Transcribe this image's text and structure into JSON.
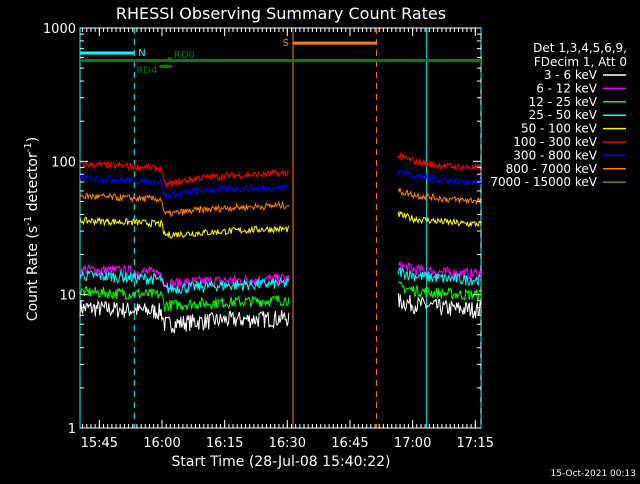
{
  "chart_data": {
    "type": "line",
    "title": "RHESSI Observing Summary Count Rates",
    "xlabel": "Start Time (28-Jul-08 15:40:22)",
    "ylabel_base": "Count Rate (s",
    "ylabel_sup1": "-1",
    "ylabel_mid": " detector",
    "ylabel_sup2": "-1",
    "ylabel_end": ")",
    "y_scale": "log",
    "ylim": [
      1,
      1000
    ],
    "x_start_minutes": 0,
    "x_end_minutes": 96,
    "x_ticks": [
      {
        "minute": 4.63,
        "label": "15:45"
      },
      {
        "minute": 19.63,
        "label": "16:00"
      },
      {
        "minute": 34.63,
        "label": "16:15"
      },
      {
        "minute": 49.63,
        "label": "16:30"
      },
      {
        "minute": 64.63,
        "label": "16:45"
      },
      {
        "minute": 79.63,
        "label": "17:00"
      },
      {
        "minute": 94.63,
        "label": "17:15"
      }
    ],
    "y_ticks": [
      {
        "value": 1,
        "label": "1"
      },
      {
        "value": 10,
        "label": "10"
      },
      {
        "value": 100,
        "label": "100"
      },
      {
        "value": 1000,
        "label": "1000"
      }
    ],
    "legend_header": [
      "Det 1,3,4,5,6,9,",
      "FDecim 1, Att 0"
    ],
    "legend_placement": "right",
    "series": [
      {
        "name": "3 - 6 keV",
        "color": "#ffffff",
        "segments": [
          {
            "x": [
              0,
              12,
              19.5,
              20.2,
              28,
              36,
              44,
              50
            ],
            "y": [
              8.0,
              7.7,
              7.5,
              6.0,
              6.3,
              6.5,
              6.6,
              6.7
            ]
          },
          {
            "x": [
              76.2,
              80,
              84,
              88,
              92,
              96
            ],
            "y": [
              9.0,
              8.5,
              8.2,
              7.9,
              7.8,
              7.8
            ]
          }
        ]
      },
      {
        "name": "6 - 12 keV",
        "color": "#ff00ff",
        "segments": [
          {
            "x": [
              0,
              12,
              19.5,
              20.2,
              28,
              36,
              44,
              50
            ],
            "y": [
              15.5,
              15.0,
              14.5,
              12.0,
              12.5,
              12.8,
              13.0,
              13.2
            ]
          },
          {
            "x": [
              76.2,
              80,
              84,
              88,
              92,
              96
            ],
            "y": [
              16.5,
              15.5,
              15.0,
              14.6,
              14.4,
              14.4
            ]
          }
        ]
      },
      {
        "name": "12 - 25 keV",
        "color": "#00ff00",
        "segments": [
          {
            "x": [
              0,
              12,
              19.5,
              20.2,
              28,
              36,
              44,
              50
            ],
            "y": [
              10.5,
              10.2,
              10.0,
              8.3,
              8.6,
              8.8,
              9.0,
              9.2
            ]
          },
          {
            "x": [
              76.2,
              80,
              84,
              88,
              92,
              96
            ],
            "y": [
              11.5,
              10.8,
              10.4,
              10.2,
              10.0,
              10.0
            ]
          }
        ]
      },
      {
        "name": "25 - 50 keV",
        "color": "#00ffff",
        "segments": [
          {
            "x": [
              0,
              12,
              19.5,
              20.2,
              28,
              36,
              44,
              50
            ],
            "y": [
              14.0,
              13.5,
              13.0,
              11.0,
              11.5,
              11.8,
              12.0,
              12.2
            ]
          },
          {
            "x": [
              76.2,
              80,
              84,
              88,
              92,
              96
            ],
            "y": [
              15.0,
              14.0,
              13.5,
              13.2,
              13.0,
              13.0
            ]
          }
        ]
      },
      {
        "name": "50 - 100 keV",
        "color": "#ffff00",
        "segments": [
          {
            "x": [
              0,
              12,
              19.5,
              20.2,
              28,
              36,
              44,
              50
            ],
            "y": [
              36,
              35,
              34,
              28,
              29,
              30,
              31,
              31
            ]
          },
          {
            "x": [
              76.2,
              80,
              84,
              88,
              92,
              96
            ],
            "y": [
              40,
              37,
              36,
              35,
              34,
              34
            ]
          }
        ]
      },
      {
        "name": "100 - 300 keV",
        "color": "#ff0000",
        "segments": [
          {
            "x": [
              0,
              12,
              19.5,
              20.2,
              28,
              36,
              44,
              50
            ],
            "y": [
              95,
              92,
              88,
              66,
              75,
              78,
              80,
              82
            ]
          },
          {
            "x": [
              76.2,
              80,
              84,
              88,
              92,
              96
            ],
            "y": [
              110,
              100,
              95,
              92,
              90,
              89
            ]
          }
        ]
      },
      {
        "name": "300 - 800 keV",
        "color": "#0000ff",
        "segments": [
          {
            "x": [
              0,
              12,
              19.5,
              20.2,
              28,
              36,
              44,
              50
            ],
            "y": [
              75,
              72,
              70,
              55,
              60,
              62,
              63,
              64
            ]
          },
          {
            "x": [
              76.2,
              80,
              84,
              88,
              92,
              96
            ],
            "y": [
              85,
              78,
              74,
              72,
              70,
              70
            ]
          }
        ]
      },
      {
        "name": "800 - 7000 keV",
        "color": "#ff8000",
        "segments": [
          {
            "x": [
              0,
              12,
              19.5,
              20.2,
              28,
              36,
              44,
              50
            ],
            "y": [
              55,
              53,
              52,
              40,
              43,
              45,
              46,
              47
            ]
          },
          {
            "x": [
              76.2,
              80,
              84,
              88,
              92,
              96
            ],
            "y": [
              60,
              56,
              54,
              52,
              51,
              51
            ]
          }
        ]
      },
      {
        "name": "7000 - 15000 keV",
        "color": "#808000",
        "segments": []
      }
    ],
    "annotations": [
      {
        "type": "bar",
        "label": "N",
        "color": "#00ffff",
        "x": [
          0,
          13
        ],
        "y": 650
      },
      {
        "type": "bar",
        "label": "S",
        "color": "#ff8000",
        "x": [
          51,
          71
        ],
        "y": 770
      },
      {
        "type": "bar",
        "label": "",
        "color": "#008000",
        "x": [
          0,
          96
        ],
        "y": 570
      },
      {
        "type": "bar",
        "label": "RD4",
        "color": "#008000",
        "x": [
          19,
          22
        ],
        "y": 515
      },
      {
        "type": "bar",
        "label": "RD0",
        "color": "#008000",
        "x": [
          21,
          22
        ],
        "y": 585
      }
    ],
    "vlines": [
      {
        "x": 0,
        "color": "#00ffff",
        "style": "solid"
      },
      {
        "x": 13,
        "color": "#00ffff",
        "style": "dashed"
      },
      {
        "x": 51,
        "color": "#ff8000",
        "style": "solid"
      },
      {
        "x": 71,
        "color": "#ff8000",
        "style": "dashed"
      },
      {
        "x": 83,
        "color": "#00ffff",
        "style": "solid"
      },
      {
        "x": 96,
        "color": "#00ffff",
        "style": "dashed"
      }
    ]
  },
  "footer_date": "15-Oct-2021 00:13"
}
